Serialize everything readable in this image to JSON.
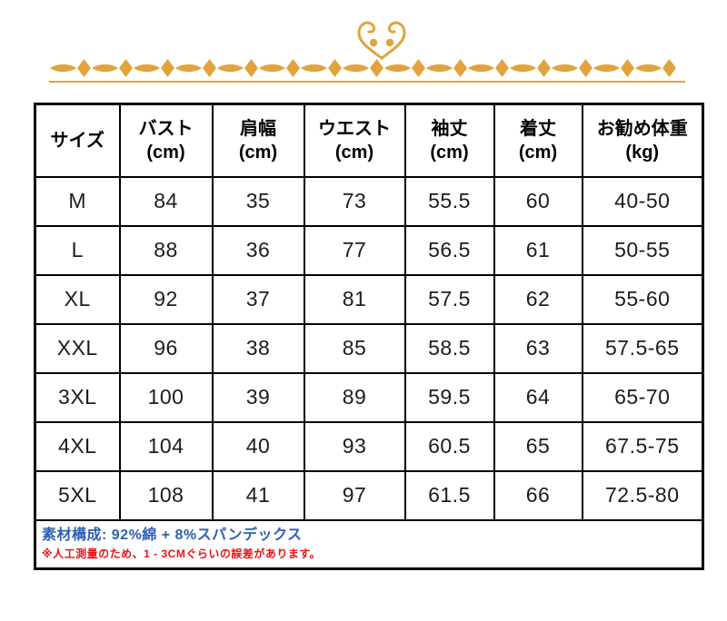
{
  "ornament": {
    "heart_icon": "heart-curl-ornament",
    "band_icon": "diamond-oval-divider",
    "gold_color": "#e2a33c"
  },
  "table": {
    "columns": [
      {
        "label": "サイズ",
        "unit": ""
      },
      {
        "label": "バスト",
        "unit": "(cm)"
      },
      {
        "label": "肩幅",
        "unit": "(cm)"
      },
      {
        "label": "ウエスト",
        "unit": "(cm)"
      },
      {
        "label": "袖丈",
        "unit": "(cm)"
      },
      {
        "label": "着丈",
        "unit": "(cm)"
      },
      {
        "label": "お勧め体重",
        "unit": "(kg)"
      }
    ],
    "rows": [
      {
        "size": "M",
        "values": [
          "84",
          "35",
          "73",
          "55.5",
          "60",
          "40-50"
        ]
      },
      {
        "size": "L",
        "values": [
          "88",
          "36",
          "77",
          "56.5",
          "61",
          "50-55"
        ]
      },
      {
        "size": "XL",
        "values": [
          "92",
          "37",
          "81",
          "57.5",
          "62",
          "55-60"
        ]
      },
      {
        "size": "XXL",
        "values": [
          "96",
          "38",
          "85",
          "58.5",
          "63",
          "57.5-65"
        ]
      },
      {
        "size": "3XL",
        "values": [
          "100",
          "39",
          "89",
          "59.5",
          "64",
          "65-70"
        ]
      },
      {
        "size": "4XL",
        "values": [
          "104",
          "40",
          "93",
          "60.5",
          "65",
          "67.5-75"
        ]
      },
      {
        "size": "5XL",
        "values": [
          "108",
          "41",
          "97",
          "61.5",
          "66",
          "72.5-80"
        ]
      }
    ]
  },
  "notes": {
    "material": "素材構成: 92%綿 + 8%スパンデックス",
    "material_color": "#3060b0",
    "disclaimer": "※人工測量のため、1 - 3CMぐらいの誤差があります。",
    "disclaimer_color": "#ee1111"
  }
}
